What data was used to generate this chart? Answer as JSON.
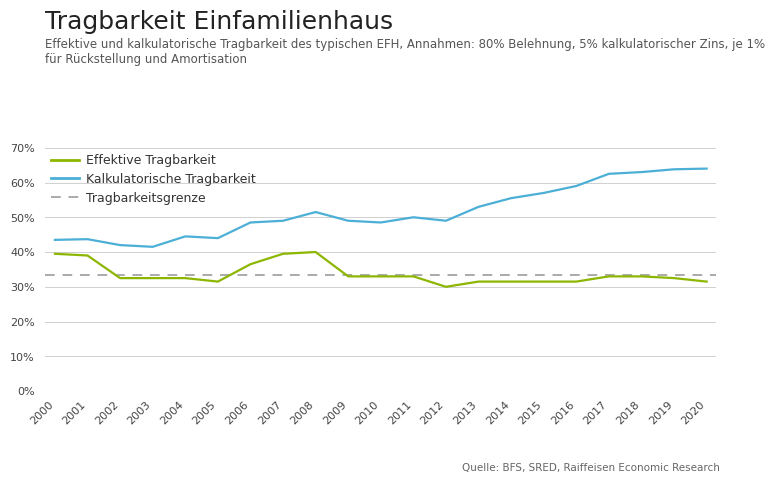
{
  "title": "Tragbarkeit Einfamilienhaus",
  "subtitle": "Effektive und kalkulatorische Tragbarkeit des typischen EFH, Annahmen: 80% Belehnung, 5% kalkulatorischer Zins, je 1%\nfür Rückstellung und Amortisation",
  "source": "Quelle: BFS, SRED, Raiffeisen Economic Research",
  "years": [
    2000,
    2001,
    2002,
    2003,
    2004,
    2005,
    2006,
    2007,
    2008,
    2009,
    2010,
    2011,
    2012,
    2013,
    2014,
    2015,
    2016,
    2017,
    2018,
    2019,
    2020
  ],
  "effektive": [
    0.395,
    0.39,
    0.325,
    0.325,
    0.325,
    0.315,
    0.365,
    0.395,
    0.4,
    0.33,
    0.33,
    0.33,
    0.3,
    0.315,
    0.315,
    0.315,
    0.315,
    0.33,
    0.33,
    0.325,
    0.315
  ],
  "kalkulatorische": [
    0.435,
    0.437,
    0.42,
    0.415,
    0.445,
    0.44,
    0.485,
    0.49,
    0.515,
    0.49,
    0.485,
    0.5,
    0.49,
    0.53,
    0.555,
    0.57,
    0.59,
    0.625,
    0.63,
    0.638,
    0.64
  ],
  "grenze": 0.333,
  "effektive_color": "#8db600",
  "kalkulatorische_color": "#4bafd6",
  "grenze_color": "#aaaaaa",
  "background_color": "#ffffff",
  "grid_color": "#d0d0d0",
  "ylim": [
    0.0,
    0.7
  ],
  "yticks": [
    0.0,
    0.1,
    0.2,
    0.3,
    0.4,
    0.5,
    0.6,
    0.7
  ],
  "title_fontsize": 18,
  "subtitle_fontsize": 8.5,
  "legend_fontsize": 9,
  "axis_fontsize": 8,
  "source_fontsize": 7.5,
  "legend_effektive": "Effektive Tragbarkeit",
  "legend_kalkulatorische": "Kalkulatorische Tragbarkeit",
  "legend_grenze": "Tragbarkeitsgrenze"
}
